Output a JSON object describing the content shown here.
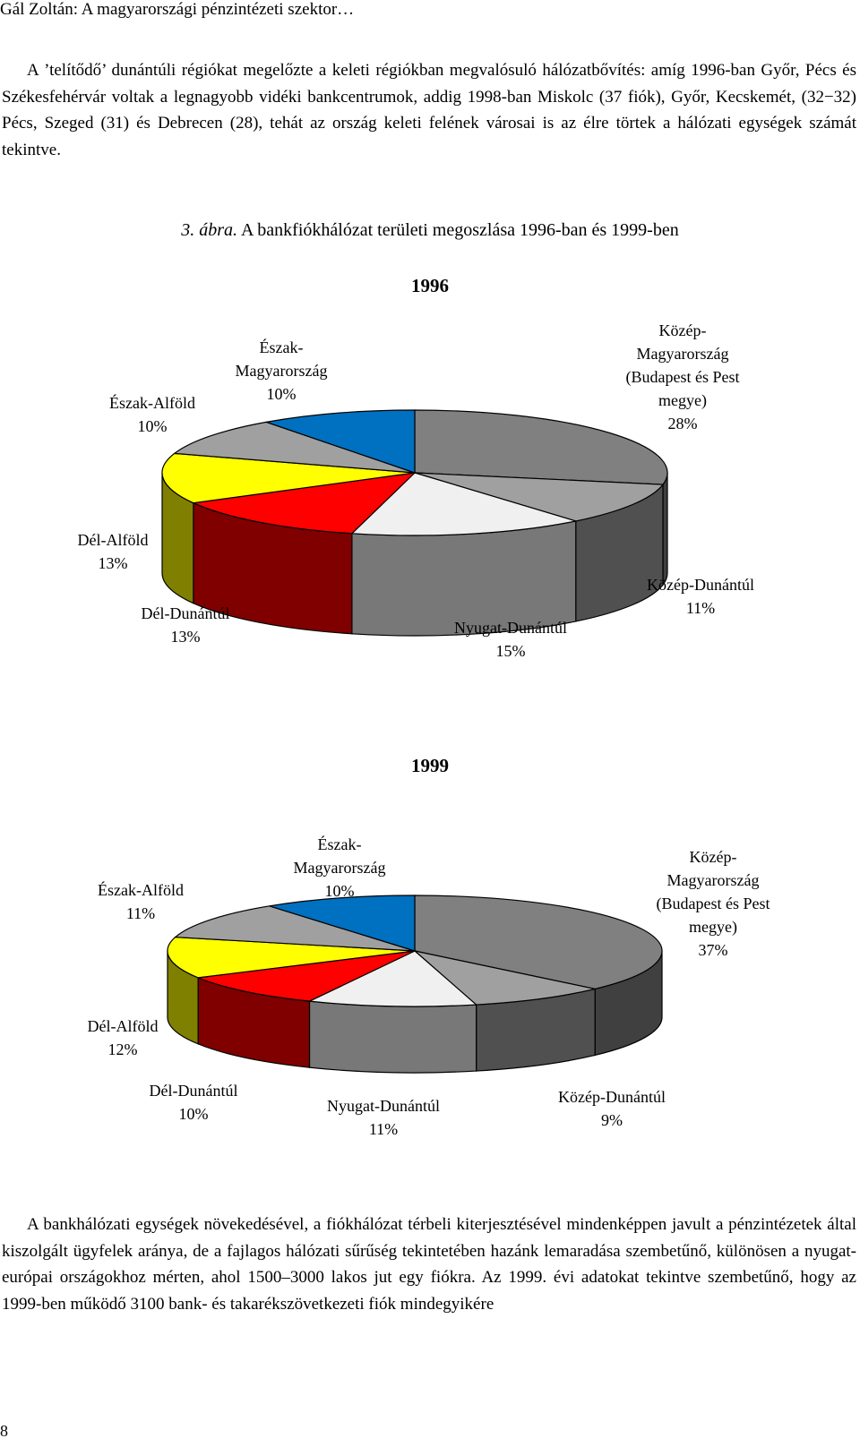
{
  "header": {
    "running_title": "Gál Zoltán: A magyarországi pénzintézeti szektor…"
  },
  "intro_paragraph": "A ’telítődő’ dunántúli régiókat megelőzte a keleti régiókban megvalósuló hálózatbővítés: amíg 1996-ban Győr, Pécs és Székesfehérvár voltak a legnagyobb vidéki bankcentrumok, addig 1998-ban Miskolc (37 fiók), Győr, Kecskemét, (32−32) Pécs, Szeged (31) és Debrecen (28), tehát az ország keleti felének városai is az élre törtek a hálózati egységek számát tekintve.",
  "figure": {
    "number": "3. ábra.",
    "title": "A bankfiókhálózat területi megoszlása 1996-ban és 1999-ben"
  },
  "chart_data": [
    {
      "type": "pie",
      "title": "1996",
      "slices": [
        {
          "name": "Közép-\nMagyarország\n(Budapest és Pest\nmegye)",
          "label": "28%",
          "value": 28,
          "color": "#808080"
        },
        {
          "name": "Közép-Dunántúl",
          "label": "11%",
          "value": 11,
          "color": "#a0a0a0"
        },
        {
          "name": "Nyugat-Dunántúl",
          "label": "15%",
          "value": 15,
          "color": "#f0f0f0"
        },
        {
          "name": "Dél-Dunántúl",
          "label": "13%",
          "value": 13,
          "color": "#ff0000"
        },
        {
          "name": "Dél-Alföld",
          "label": "13%",
          "value": 13,
          "color": "#ffff00"
        },
        {
          "name": "Észak-Alföld",
          "label": "10%",
          "value": 10,
          "color": "#a0a0a0"
        },
        {
          "name": "Észak-\nMagyarország",
          "label": "10%",
          "value": 10,
          "color": "#0070c0"
        }
      ]
    },
    {
      "type": "pie",
      "title": "1999",
      "slices": [
        {
          "name": "Közép-\nMagyarország\n(Budapest és Pest\nmegye)",
          "label": "37%",
          "value": 37,
          "color": "#808080"
        },
        {
          "name": "Közép-Dunántúl",
          "label": "9%",
          "value": 9,
          "color": "#a0a0a0"
        },
        {
          "name": "Nyugat-Dunántúl",
          "label": "11%",
          "value": 11,
          "color": "#f0f0f0"
        },
        {
          "name": "Dél-Dunántúl",
          "label": "10%",
          "value": 10,
          "color": "#ff0000"
        },
        {
          "name": "Dél-Alföld",
          "label": "12%",
          "value": 12,
          "color": "#ffff00"
        },
        {
          "name": "Észak-Alföld",
          "label": "11%",
          "value": 11,
          "color": "#a0a0a0"
        },
        {
          "name": "Észak-\nMagyarország",
          "label": "10%",
          "value": 10,
          "color": "#0070c0"
        }
      ]
    }
  ],
  "closing_paragraph": "A bankhálózati egységek növekedésével, a fiókhálózat térbeli kiterjesztésével mindenképpen javult a pénzintézetek által kiszolgált ügyfelek aránya, de a fajlagos hálózati sűrűség tekintetében hazánk lemaradása szembetűnő, különösen a nyugat-európai országokhoz mérten, ahol 1500–3000 lakos jut egy fiókra. Az 1999. évi adatokat tekintve szembetűnő, hogy az 1999-ben működő 3100 bank- és takarékszövetkezeti fiók mindegyikére",
  "page_number": "8"
}
